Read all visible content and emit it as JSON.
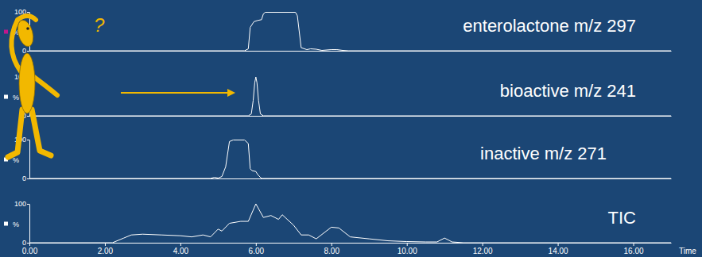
{
  "chart_data": [
    {
      "type": "line",
      "series": [
        {
          "name": "enterolactone m/z 297",
          "color": "#ffffff"
        }
      ],
      "x": [
        0,
        5.7,
        5.8,
        5.85,
        5.95,
        6.05,
        6.15,
        6.2,
        6.25,
        7.05,
        7.1,
        7.2,
        7.35,
        7.45,
        7.6,
        7.75,
        8.0,
        8.15,
        8.3,
        8.45,
        17
      ],
      "values": [
        0,
        0,
        5,
        60,
        75,
        78,
        80,
        95,
        99,
        99,
        90,
        8,
        3,
        5,
        4,
        1,
        3,
        3,
        1,
        0,
        0
      ],
      "xlim": [
        0,
        17
      ],
      "ylim": [
        0,
        100
      ],
      "yticks": [
        0,
        100
      ],
      "y_label": "%",
      "tick_labels": "y",
      "annotations": [
        {
          "text": "?"
        }
      ]
    },
    {
      "type": "line",
      "series": [
        {
          "name": "bioactive m/z 241",
          "color": "#ffffff"
        }
      ],
      "x": [
        0,
        5.8,
        5.88,
        5.93,
        5.97,
        6.0,
        6.03,
        6.07,
        6.12,
        6.2,
        17
      ],
      "values": [
        0,
        0,
        5,
        40,
        85,
        100,
        85,
        40,
        5,
        0,
        0
      ],
      "xlim": [
        0,
        17
      ],
      "ylim": [
        0,
        100
      ],
      "yticks": [
        0,
        100
      ],
      "y_label": "%",
      "tick_labels": "y"
    },
    {
      "type": "line",
      "series": [
        {
          "name": "inactive m/z 271",
          "color": "#ffffff"
        }
      ],
      "x": [
        0,
        4.8,
        4.9,
        5.0,
        5.1,
        5.2,
        5.3,
        5.4,
        5.7,
        5.8,
        5.85,
        5.9,
        6.0,
        6.05,
        6.15,
        17
      ],
      "values": [
        0,
        0,
        3,
        1,
        5,
        30,
        95,
        99,
        99,
        90,
        25,
        20,
        18,
        10,
        0,
        0
      ],
      "xlim": [
        0,
        17
      ],
      "ylim": [
        0,
        100
      ],
      "yticks": [
        0,
        100
      ],
      "y_label": "%",
      "tick_labels": "y"
    },
    {
      "type": "line",
      "series": [
        {
          "name": "TIC",
          "color": "#ffffff"
        }
      ],
      "x": [
        0,
        2.2,
        2.5,
        2.7,
        3.0,
        3.5,
        4.0,
        4.3,
        4.6,
        4.8,
        5.0,
        5.1,
        5.3,
        5.6,
        5.8,
        6.0,
        6.2,
        6.4,
        6.6,
        6.7,
        7.0,
        7.2,
        7.4,
        7.6,
        8.0,
        8.2,
        8.5,
        9.0,
        9.5,
        10.0,
        10.5,
        10.8,
        11.0,
        11.2,
        11.5,
        17
      ],
      "values": [
        0,
        0,
        12,
        20,
        22,
        20,
        18,
        15,
        20,
        15,
        35,
        30,
        50,
        55,
        55,
        100,
        65,
        70,
        60,
        72,
        45,
        20,
        20,
        10,
        40,
        38,
        15,
        10,
        5,
        3,
        2,
        2,
        12,
        2,
        0,
        0
      ],
      "xlim": [
        0,
        17
      ],
      "ylim": [
        0,
        100
      ],
      "yticks": [
        0,
        100
      ],
      "y_label": "%",
      "xticks": [
        {
          "value": 0,
          "label": "0.00"
        },
        {
          "value": 2,
          "label": "2.00"
        },
        {
          "value": 4,
          "label": "4.00"
        },
        {
          "value": 6,
          "label": "6.00"
        },
        {
          "value": 8,
          "label": "8.00"
        },
        {
          "value": 10,
          "label": "10.00"
        },
        {
          "value": 12,
          "label": "12.00"
        },
        {
          "value": 14,
          "label": "14.00"
        },
        {
          "value": 16,
          "label": "16.00"
        }
      ],
      "x_label": "Time"
    }
  ]
}
